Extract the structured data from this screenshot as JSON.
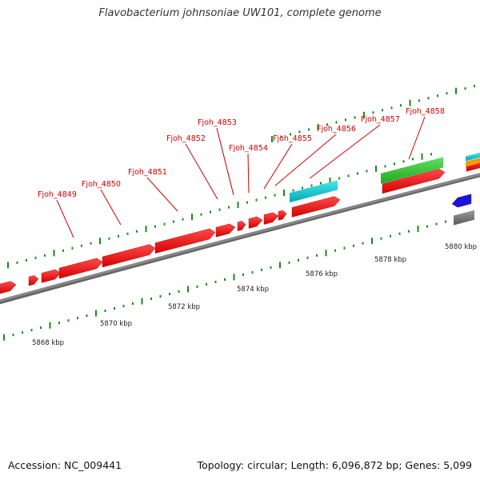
{
  "title": "Flavobacterium johnsoniae UW101, complete genome",
  "footer": {
    "accession": "Accession: NC_009441",
    "topology": "Topology: circular; Length: 6,096,872 bp; Genes: 5,099"
  },
  "scale": {
    "labels": [
      "5868 kbp",
      "5870 kbp",
      "5872 kbp",
      "5874 kbp",
      "5876 kbp",
      "5878 kbp",
      "5880 kbp"
    ]
  },
  "genes": [
    "Fjoh_4849",
    "Fjoh_4850",
    "Fjoh_4851",
    "Fjoh_4852",
    "Fjoh_4853",
    "Fjoh_4854",
    "Fjoh_4855",
    "Fjoh_4856",
    "Fjoh_4857",
    "Fjoh_4858"
  ],
  "colors": {
    "cds": "#ff0000",
    "trna": "#00c8d0",
    "green_feature": "#33cc33",
    "orange_feature": "#ff9900",
    "blue_feature": "#1515dd",
    "grey_feature": "#777777",
    "backbone": "#888888",
    "tick": "#1a8a1a",
    "label": "#cc0000"
  }
}
